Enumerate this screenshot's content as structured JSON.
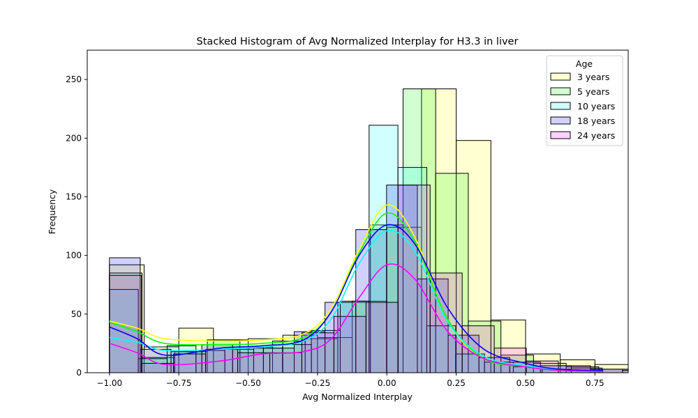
{
  "chart_data": {
    "type": "bar",
    "title": "Stacked Histogram of Avg Normalized  Interplay for H3.3 in liver",
    "xlabel": "Avg Normalized Interplay",
    "ylabel": "Frequency",
    "xlim": [
      -1.08,
      0.87
    ],
    "ylim": [
      0,
      275
    ],
    "xticks": [
      -1.0,
      -0.75,
      -0.5,
      -0.25,
      0.0,
      0.25,
      0.5,
      0.75
    ],
    "xtick_labels": [
      "−1.00",
      "−0.75",
      "−0.50",
      "−0.25",
      "0.00",
      "0.25",
      "0.50",
      "0.75"
    ],
    "yticks": [
      0,
      50,
      100,
      150,
      200,
      250
    ],
    "ytick_labels": [
      "0",
      "50",
      "100",
      "150",
      "200",
      "250"
    ],
    "grid": false,
    "legend": {
      "title": "Age",
      "placement": "top-right"
    },
    "series": [
      {
        "name": "3 years",
        "color": "#ffff00",
        "bin_start": -1.0,
        "bin_width": 0.125,
        "values": [
          92,
          22,
          38,
          28,
          29,
          32,
          30,
          61,
          124,
          242,
          198,
          45,
          16,
          11,
          7,
          4,
          3
        ],
        "kde": [
          44,
          38,
          29,
          27,
          28,
          33,
          55,
          105,
          143,
          116,
          44,
          12,
          5,
          2,
          1
        ]
      },
      {
        "name": "5 years",
        "color": "#00ff00",
        "bin_start": -1.0,
        "bin_width": 0.1176,
        "values": [
          85,
          13,
          18,
          28,
          22,
          27,
          29,
          60,
          126,
          242,
          170,
          44,
          15,
          8,
          5,
          3,
          3
        ],
        "kde": [
          43,
          35,
          25,
          24,
          25,
          30,
          52,
          102,
          136,
          112,
          45,
          12,
          5,
          2,
          1
        ]
      },
      {
        "name": "10 years",
        "color": "#00ffff",
        "bin_start": -1.0,
        "bin_width": 0.104,
        "values": [
          71,
          12,
          23,
          19,
          20,
          21,
          24,
          36,
          61,
          211,
          175,
          40,
          16,
          9,
          5,
          3,
          2
        ],
        "kde": [
          30,
          26,
          19,
          20,
          22,
          27,
          46,
          93,
          121,
          104,
          43,
          14,
          6,
          3,
          1
        ]
      },
      {
        "name": "18 years",
        "color": "#0000ff",
        "bin_start": -1.0,
        "bin_width": 0.111,
        "values": [
          98,
          20,
          18,
          24,
          22,
          21,
          35,
          60,
          122,
          160,
          80,
          32,
          13,
          9,
          6,
          4,
          3
        ],
        "kde": [
          39,
          29,
          15,
          21,
          23,
          28,
          52,
          100,
          126,
          110,
          55,
          20,
          8,
          3,
          2
        ]
      },
      {
        "name": "24 years",
        "color": "#ff00ff",
        "bin_start": -1.0,
        "bin_width": 0.1156,
        "values": [
          83,
          8,
          16,
          20,
          17,
          17,
          34,
          48,
          60,
          160,
          85,
          40,
          21,
          10,
          6,
          3,
          2
        ],
        "kde": [
          25,
          17,
          7,
          10,
          16,
          18,
          29,
          64,
          92,
          80,
          35,
          12,
          5,
          2,
          1
        ]
      }
    ],
    "kde_x": [
      -1.0,
      -0.9,
      -0.8,
      -0.6,
      -0.45,
      -0.3,
      -0.2,
      -0.1,
      0.0,
      0.1,
      0.22,
      0.35,
      0.5,
      0.62,
      0.78
    ]
  }
}
